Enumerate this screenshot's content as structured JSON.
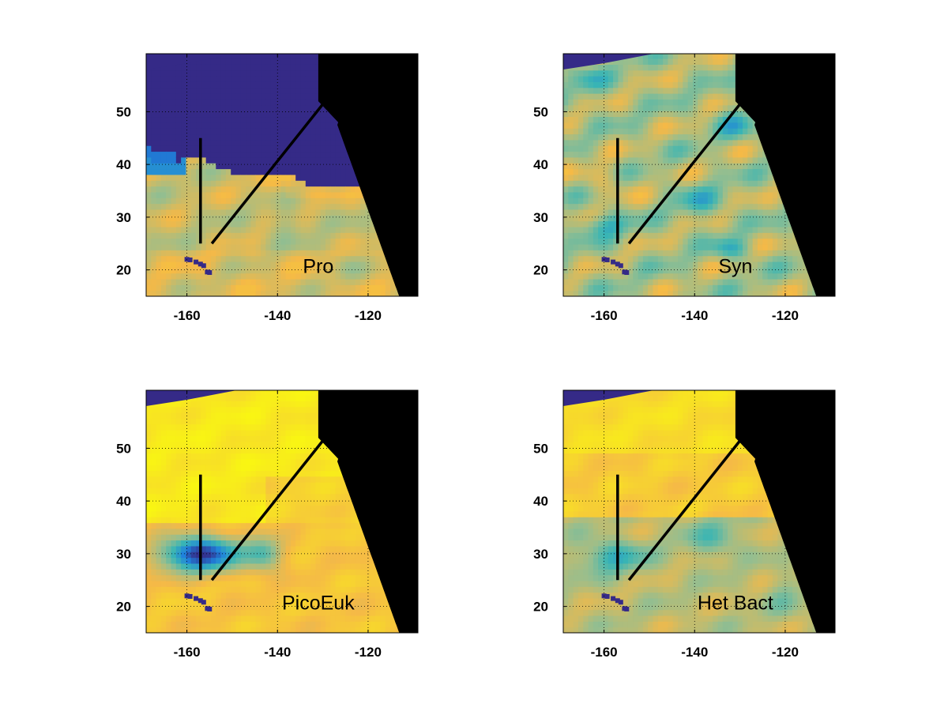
{
  "figure": {
    "x_ticks": [
      "-160",
      "-140",
      "-120"
    ],
    "y_ticks": [
      "20",
      "30",
      "40",
      "50"
    ]
  },
  "panels": [
    {
      "id": "pro",
      "label": "Pro",
      "pattern": "pro"
    },
    {
      "id": "syn",
      "label": "Syn",
      "pattern": "syn"
    },
    {
      "id": "picoeuk",
      "label": "PicoEuk",
      "pattern": "picoeuk"
    },
    {
      "id": "hetbact",
      "label": "Het Bact",
      "pattern": "hetbact"
    }
  ],
  "map_extent": {
    "lon": [
      -169,
      -109
    ],
    "lat": [
      15,
      61
    ]
  },
  "x_tick_values": [
    -160,
    -140,
    -120
  ],
  "y_tick_values": [
    20,
    30,
    40,
    50
  ],
  "transects": [
    {
      "lon": [
        -157,
        -157
      ],
      "lat": [
        45,
        25
      ]
    },
    {
      "lon": [
        -154.5,
        -129
      ],
      "lat": [
        25,
        52.5
      ]
    }
  ],
  "grid": "dotted",
  "colors": {
    "land": "#000000",
    "dark_blue": "#352a87",
    "blue": "#1f82dc",
    "teal": "#39b5b4",
    "green_gray": "#96be8f",
    "orange": "#f5b947",
    "yellow": "#f9fb0e",
    "transect": "#000000"
  }
}
